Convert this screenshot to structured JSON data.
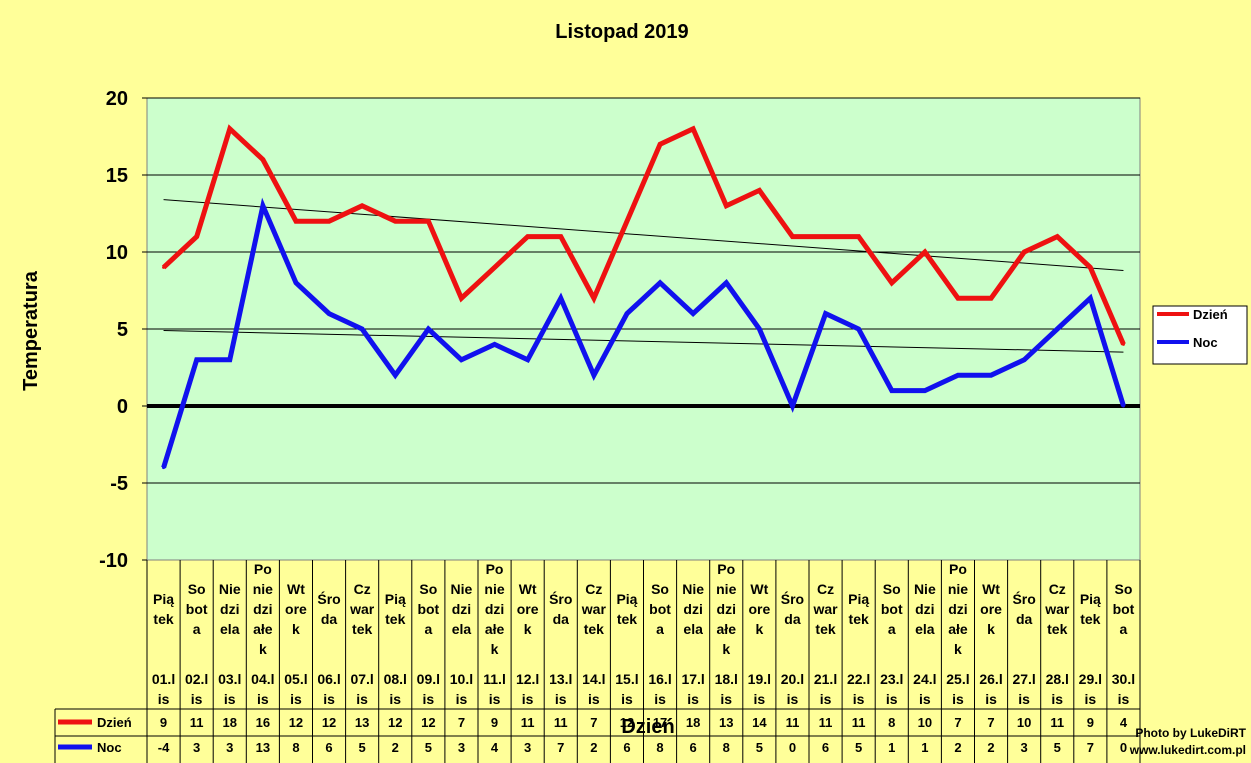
{
  "chart_data": {
    "type": "line",
    "title": "Listopad 2019",
    "xlabel": "Dzień",
    "ylabel": "Temperatura",
    "ylim": [
      -10,
      20
    ],
    "yticks": [
      20,
      15,
      10,
      5,
      0,
      -5,
      -10
    ],
    "grid": true,
    "legend_position": "right",
    "categories": [
      {
        "day": "Piątek",
        "date": "01.lis",
        "dayLines": [
          "Pią",
          "tek"
        ],
        "dateLines": [
          "01.l",
          "is"
        ]
      },
      {
        "day": "Sobota",
        "date": "02.lis",
        "dayLines": [
          "So",
          "bot",
          "a"
        ],
        "dateLines": [
          "02.l",
          "is"
        ]
      },
      {
        "day": "Niedziela",
        "date": "03.lis",
        "dayLines": [
          "Nie",
          "dzi",
          "ela"
        ],
        "dateLines": [
          "03.l",
          "is"
        ]
      },
      {
        "day": "Poniedziałek",
        "date": "04.lis",
        "dayLines": [
          "Po",
          "nie",
          "dzi",
          "ałe",
          "k"
        ],
        "dateLines": [
          "04.l",
          "is"
        ]
      },
      {
        "day": "Wtorek",
        "date": "05.lis",
        "dayLines": [
          "Wt",
          "ore",
          "k"
        ],
        "dateLines": [
          "05.l",
          "is"
        ]
      },
      {
        "day": "Środa",
        "date": "06.lis",
        "dayLines": [
          "Śro",
          "da"
        ],
        "dateLines": [
          "06.l",
          "is"
        ]
      },
      {
        "day": "Czwartek",
        "date": "07.lis",
        "dayLines": [
          "Cz",
          "war",
          "tek"
        ],
        "dateLines": [
          "07.l",
          "is"
        ]
      },
      {
        "day": "Piątek",
        "date": "08.lis",
        "dayLines": [
          "Pią",
          "tek"
        ],
        "dateLines": [
          "08.l",
          "is"
        ]
      },
      {
        "day": "Sobota",
        "date": "09.lis",
        "dayLines": [
          "So",
          "bot",
          "a"
        ],
        "dateLines": [
          "09.l",
          "is"
        ]
      },
      {
        "day": "Niedziela",
        "date": "10.lis",
        "dayLines": [
          "Nie",
          "dzi",
          "ela"
        ],
        "dateLines": [
          "10.l",
          "is"
        ]
      },
      {
        "day": "Poniedziałek",
        "date": "11.lis",
        "dayLines": [
          "Po",
          "nie",
          "dzi",
          "ałe",
          "k"
        ],
        "dateLines": [
          "11.l",
          "is"
        ]
      },
      {
        "day": "Wtorek",
        "date": "12.lis",
        "dayLines": [
          "Wt",
          "ore",
          "k"
        ],
        "dateLines": [
          "12.l",
          "is"
        ]
      },
      {
        "day": "Środa",
        "date": "13.lis",
        "dayLines": [
          "Śro",
          "da"
        ],
        "dateLines": [
          "13.l",
          "is"
        ]
      },
      {
        "day": "Czwartek",
        "date": "14.lis",
        "dayLines": [
          "Cz",
          "war",
          "tek"
        ],
        "dateLines": [
          "14.l",
          "is"
        ]
      },
      {
        "day": "Piątek",
        "date": "15.lis",
        "dayLines": [
          "Pią",
          "tek"
        ],
        "dateLines": [
          "15.l",
          "is"
        ]
      },
      {
        "day": "Sobota",
        "date": "16.lis",
        "dayLines": [
          "So",
          "bot",
          "a"
        ],
        "dateLines": [
          "16.l",
          "is"
        ]
      },
      {
        "day": "Niedziela",
        "date": "17.lis",
        "dayLines": [
          "Nie",
          "dzi",
          "ela"
        ],
        "dateLines": [
          "17.l",
          "is"
        ]
      },
      {
        "day": "Poniedziałek",
        "date": "18.lis",
        "dayLines": [
          "Po",
          "nie",
          "dzi",
          "ałe",
          "k"
        ],
        "dateLines": [
          "18.l",
          "is"
        ]
      },
      {
        "day": "Wtorek",
        "date": "19.lis",
        "dayLines": [
          "Wt",
          "ore",
          "k"
        ],
        "dateLines": [
          "19.l",
          "is"
        ]
      },
      {
        "day": "Środa",
        "date": "20.lis",
        "dayLines": [
          "Śro",
          "da"
        ],
        "dateLines": [
          "20.l",
          "is"
        ]
      },
      {
        "day": "Czwartek",
        "date": "21.lis",
        "dayLines": [
          "Cz",
          "war",
          "tek"
        ],
        "dateLines": [
          "21.l",
          "is"
        ]
      },
      {
        "day": "Piątek",
        "date": "22.lis",
        "dayLines": [
          "Pią",
          "tek"
        ],
        "dateLines": [
          "22.l",
          "is"
        ]
      },
      {
        "day": "Sobota",
        "date": "23.lis",
        "dayLines": [
          "So",
          "bot",
          "a"
        ],
        "dateLines": [
          "23.l",
          "is"
        ]
      },
      {
        "day": "Niedziela",
        "date": "24.lis",
        "dayLines": [
          "Nie",
          "dzi",
          "ela"
        ],
        "dateLines": [
          "24.l",
          "is"
        ]
      },
      {
        "day": "Poniedziałek",
        "date": "25.lis",
        "dayLines": [
          "Po",
          "nie",
          "dzi",
          "ałe",
          "k"
        ],
        "dateLines": [
          "25.l",
          "is"
        ]
      },
      {
        "day": "Wtorek",
        "date": "26.lis",
        "dayLines": [
          "Wt",
          "ore",
          "k"
        ],
        "dateLines": [
          "26.l",
          "is"
        ]
      },
      {
        "day": "Środa",
        "date": "27.lis",
        "dayLines": [
          "Śro",
          "da"
        ],
        "dateLines": [
          "27.l",
          "is"
        ]
      },
      {
        "day": "Czwartek",
        "date": "28.lis",
        "dayLines": [
          "Cz",
          "war",
          "tek"
        ],
        "dateLines": [
          "28.l",
          "is"
        ]
      },
      {
        "day": "Piątek",
        "date": "29.lis",
        "dayLines": [
          "Pią",
          "tek"
        ],
        "dateLines": [
          "29.l",
          "is"
        ]
      },
      {
        "day": "Sobota",
        "date": "30.lis",
        "dayLines": [
          "So",
          "bot",
          "a"
        ],
        "dateLines": [
          "30.l",
          "is"
        ]
      }
    ],
    "series": [
      {
        "name": "Dzień",
        "color": "#ee1111",
        "values": [
          9,
          11,
          18,
          16,
          12,
          12,
          13,
          12,
          12,
          7,
          9,
          11,
          11,
          7,
          12,
          17,
          18,
          13,
          14,
          11,
          11,
          11,
          8,
          10,
          7,
          7,
          10,
          11,
          9,
          4
        ]
      },
      {
        "name": "Noc",
        "color": "#1111ee",
        "values": [
          -4,
          3,
          3,
          13,
          8,
          6,
          5,
          2,
          5,
          3,
          4,
          3,
          7,
          2,
          6,
          8,
          6,
          8,
          5,
          0,
          6,
          5,
          1,
          1,
          2,
          2,
          3,
          5,
          7,
          0
        ]
      }
    ],
    "trendlines": [
      {
        "series": "Dzień",
        "start": 13.4,
        "end": 8.8
      },
      {
        "series": "Noc",
        "start": 4.9,
        "end": 3.5
      }
    ],
    "zero_line_color": "#000000",
    "plot_background": "#ccffcc",
    "credit": [
      "Photo by LukeDiRT",
      "www.lukedirt.com.pl"
    ]
  }
}
